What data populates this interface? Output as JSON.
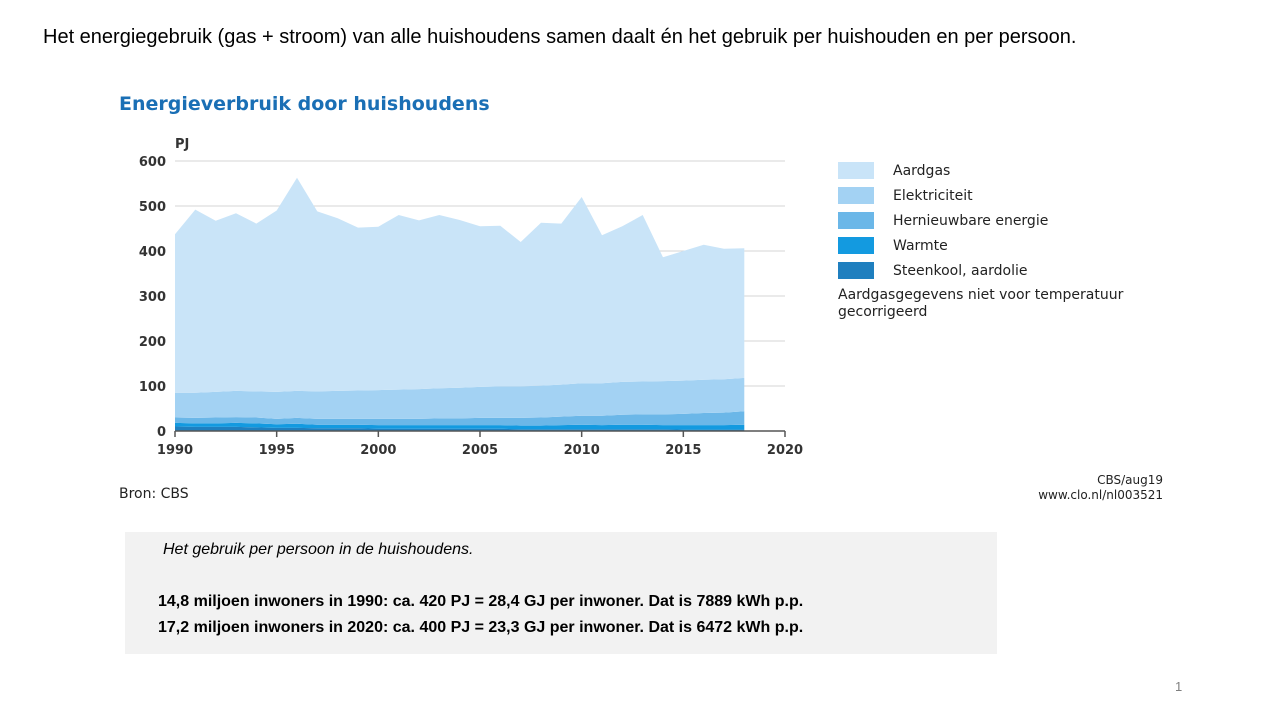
{
  "heading": "Het energiegebruik (gas + stroom) van alle huishoudens samen daalt én het gebruik per huishouden en per persoon.",
  "chart_data": {
    "type": "area",
    "stacked": true,
    "title": "Energieverbruik door huishoudens",
    "ylabel": "PJ",
    "xlabel": "",
    "xlim": [
      1990,
      2020
    ],
    "ylim": [
      0,
      600
    ],
    "x_ticks": [
      1990,
      1995,
      2000,
      2005,
      2010,
      2015,
      2020
    ],
    "y_ticks": [
      0,
      100,
      200,
      300,
      400,
      500,
      600
    ],
    "grid": "horizontal",
    "legend_position": "right",
    "x": [
      1990,
      1991,
      1992,
      1993,
      1994,
      1995,
      1996,
      1997,
      1998,
      1999,
      2000,
      2001,
      2002,
      2003,
      2004,
      2005,
      2006,
      2007,
      2008,
      2009,
      2010,
      2011,
      2012,
      2013,
      2014,
      2015,
      2016,
      2017,
      2018
    ],
    "series": [
      {
        "name": "Steenkool, aardolie",
        "color": "#1f7fbf",
        "values": [
          10,
          9,
          9,
          9,
          8,
          7,
          7,
          6,
          6,
          6,
          5,
          5,
          5,
          5,
          5,
          5,
          5,
          4,
          4,
          4,
          4,
          4,
          4,
          4,
          4,
          3,
          3,
          3,
          3
        ]
      },
      {
        "name": "Warmte",
        "color": "#139ae0",
        "values": [
          8,
          8,
          8,
          9,
          9,
          8,
          9,
          8,
          8,
          8,
          8,
          8,
          8,
          8,
          8,
          8,
          8,
          8,
          8,
          9,
          10,
          9,
          10,
          10,
          9,
          10,
          10,
          10,
          11
        ]
      },
      {
        "name": "Hernieuwbare energie",
        "color": "#6bb7e8",
        "values": [
          12,
          12,
          13,
          13,
          13,
          12,
          13,
          13,
          13,
          13,
          14,
          14,
          14,
          15,
          15,
          16,
          16,
          17,
          18,
          19,
          20,
          21,
          22,
          23,
          24,
          25,
          27,
          28,
          30
        ]
      },
      {
        "name": "Elektriciteit",
        "color": "#a3d2f3",
        "values": [
          55,
          56,
          57,
          58,
          58,
          60,
          60,
          61,
          62,
          63,
          64,
          65,
          66,
          67,
          68,
          69,
          70,
          70,
          71,
          71,
          72,
          72,
          73,
          73,
          74,
          74,
          74,
          74,
          74
        ]
      },
      {
        "name": "Aardgas",
        "color": "#c9e4f8",
        "values": [
          352,
          407,
          380,
          395,
          373,
          403,
          474,
          400,
          384,
          362,
          363,
          388,
          375,
          385,
          373,
          357,
          357,
          321,
          362,
          358,
          414,
          329,
          346,
          370,
          275,
          288,
          300,
          290,
          288
        ]
      }
    ]
  },
  "legend_note": "Aardgasgegevens niet voor temperatuur gecorrigeerd",
  "source": "Bron: CBS",
  "credit": [
    "CBS/aug19",
    "www.clo.nl/nl003521"
  ],
  "info": {
    "line0": "Het gebruik per persoon in de huishoudens.",
    "line1": "14,8 miljoen inwoners in 1990:  ca. 420 PJ = 28,4  GJ per inwoner. Dat is 7889 kWh p.p.",
    "line2": "17,2 miljoen inwoners in 2020:  ca. 400 PJ = 23,3  GJ per inwoner. Dat is 6472 kWh p.p."
  },
  "page_number": "1"
}
